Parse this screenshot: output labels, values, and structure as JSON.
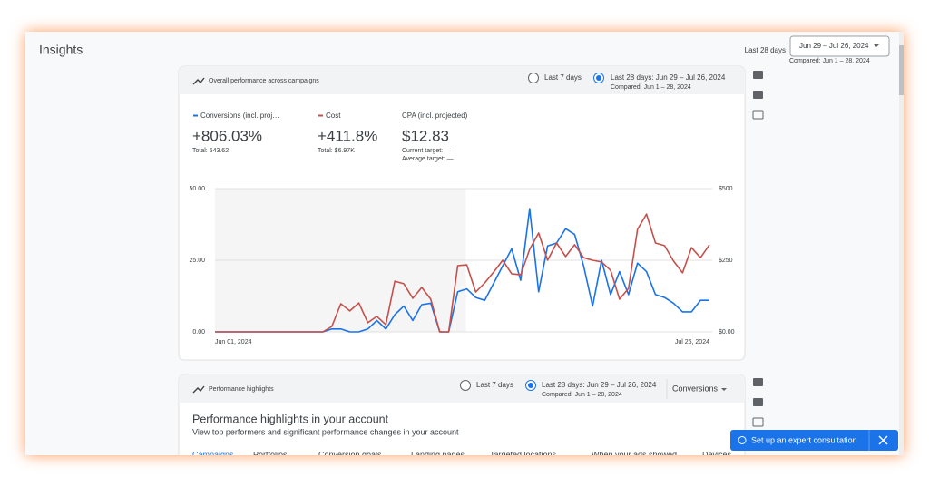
{
  "header": {
    "title": "Insights",
    "range_label": "Last 28 days",
    "range_button": "Jun 29 – Jul 26, 2024",
    "compared": "Compared: Jun 1 – 28, 2024"
  },
  "card1": {
    "title": "Overall performance across campaigns",
    "options": [
      "Last 7 days",
      "Last 28 days: Jun 29 – Jul 26, 2024"
    ],
    "compared": "Compared: Jun 1 – 28, 2024",
    "metrics": [
      {
        "name": "Conversions (incl. proj…",
        "value": "+806.03%",
        "notes": [
          "Total: 543.62"
        ]
      },
      {
        "name": "Cost",
        "value": "+411.8%",
        "notes": [
          "Total: $6.97K"
        ]
      },
      {
        "name": "CPA (incl. projected)",
        "value": "$12.83",
        "notes": [
          "Current target: —",
          "Average target: —"
        ]
      }
    ]
  },
  "chart_data": {
    "type": "line",
    "categories": [
      "Jun 01, 2024",
      null,
      null,
      null,
      null,
      null,
      null,
      null,
      null,
      null,
      null,
      null,
      null,
      null,
      null,
      null,
      null,
      null,
      null,
      null,
      null,
      null,
      null,
      null,
      null,
      null,
      null,
      null,
      null,
      null,
      null,
      null,
      null,
      null,
      null,
      null,
      null,
      null,
      null,
      null,
      null,
      null,
      null,
      null,
      null,
      null,
      null,
      null,
      null,
      null,
      null,
      null,
      null,
      null,
      null,
      "Jul 26, 2024"
    ],
    "series": [
      {
        "name": "Conversions (incl. proj…",
        "color": "#1a73e8",
        "values": [
          0,
          0,
          0,
          0,
          0,
          0,
          0,
          0,
          0,
          0,
          0,
          0,
          0,
          1,
          1,
          0,
          0,
          1,
          4,
          1,
          6,
          9,
          4,
          9.5,
          10,
          0,
          0,
          14,
          15,
          12,
          11,
          17,
          23,
          29,
          18,
          43,
          14,
          30,
          31,
          36,
          34,
          23,
          9,
          25,
          13,
          21,
          13,
          24,
          21,
          13,
          12,
          10,
          7,
          7,
          11,
          11
        ]
      },
      {
        "name": "Cost",
        "color": "#c5504b",
        "axis": "y2",
        "values": [
          0,
          0,
          0,
          0,
          0,
          0,
          0,
          0,
          0,
          0,
          0,
          0,
          0,
          19,
          98,
          73,
          101,
          32,
          54,
          25,
          177,
          168,
          117,
          155,
          114,
          0,
          0,
          231,
          234,
          139,
          171,
          209,
          250,
          203,
          199,
          288,
          345,
          250,
          310,
          263,
          304,
          259,
          250,
          244,
          215,
          114,
          152,
          358,
          411,
          310,
          301,
          247,
          206,
          294,
          259,
          304
        ]
      }
    ],
    "ylim": [
      0,
      50
    ],
    "yticks": [
      {
        "value": 0,
        "label": "0.00"
      },
      {
        "value": 25,
        "label": "25.00"
      },
      {
        "value": 50,
        "label": "50.00"
      }
    ],
    "y2lim": [
      0,
      500
    ],
    "y2ticks": [
      {
        "value": 0,
        "label": "$0.00"
      },
      {
        "value": 250,
        "label": "$250"
      },
      {
        "value": 500,
        "label": "$500"
      }
    ],
    "grid": true
  },
  "card2": {
    "title": "Performance highlights",
    "options": [
      "Last 7 days",
      "Last 28 days: Jun 29 – Jul 26, 2024"
    ],
    "compared": "Compared: Jun 1 – 28, 2024",
    "dropdown": "Conversions",
    "heading": "Performance highlights in your account",
    "description": "View top performers and significant performance changes in your account",
    "tabs": [
      "Campaigns",
      "Portfolios",
      "Conversion goals",
      "Landing pages",
      "Targeted locations",
      "When your ads showed",
      "Devices"
    ]
  },
  "consult_button": "Set up an expert consultation"
}
